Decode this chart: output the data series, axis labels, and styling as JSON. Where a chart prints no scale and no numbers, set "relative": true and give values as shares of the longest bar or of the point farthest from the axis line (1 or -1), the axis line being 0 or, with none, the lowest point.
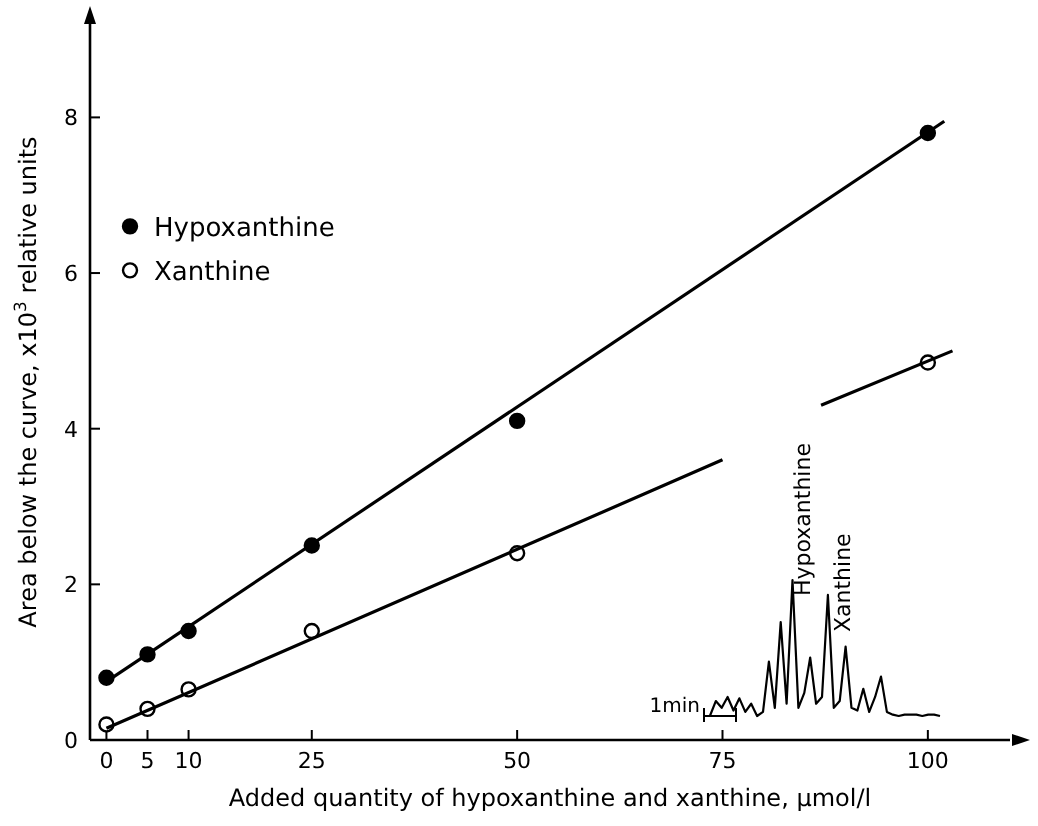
{
  "chart_data": [
    {
      "type": "scatter",
      "xlabel": "Added quantity of hypoxanthine and xanthine, μmol/l",
      "ylabel": "Area below the curve, x10$^{3}$ relative units",
      "xlim": [
        -2,
        110
      ],
      "ylim": [
        0,
        9.2
      ],
      "xticks": [
        0,
        5,
        10,
        25,
        50,
        75,
        100
      ],
      "yticks": [
        0,
        2,
        4,
        6,
        8
      ],
      "legend": "top left",
      "marker": "circle",
      "grid": false,
      "series": [
        {
          "name": "Hypoxanthine",
          "color": "#000000",
          "x": [
            0,
            5,
            10,
            25,
            50,
            100
          ],
          "values": [
            0.8,
            1.1,
            1.4,
            2.5,
            4.1,
            7.8
          ]
        },
        {
          "name": "Xanthine",
          "color": "#ffffff",
          "x": [
            0,
            5,
            10,
            25,
            50,
            100
          ],
          "values": [
            0.2,
            0.4,
            0.65,
            1.4,
            2.4,
            4.85
          ]
        },
        {
          "type": "line",
          "color": "#000000",
          "marker": "none",
          "x": [
            0,
            102
          ],
          "values": [
            0.75,
            7.95
          ]
        },
        {
          "type": "line",
          "color": "#000000",
          "marker": "none",
          "x": [
            0,
            75,
            80,
            87,
            103
          ],
          "values": [
            0.15,
            3.6,
            null,
            4.3,
            5.0
          ]
        }
      ]
    },
    {
      "type": "line",
      "relative": true,
      "categories": [
        null,
        null,
        null,
        null,
        null,
        null,
        null,
        null,
        null,
        null,
        null,
        null,
        null,
        null,
        null,
        null,
        null,
        null,
        null,
        null,
        null,
        null,
        null,
        null,
        null,
        null,
        null,
        null,
        null,
        null,
        null,
        null,
        null,
        null,
        null,
        null,
        null,
        null,
        null,
        null,
        null
      ],
      "series": [
        {
          "color": "#000000",
          "values": [
            0,
            0,
            0.11,
            0.06,
            0.14,
            0.04,
            0.13,
            0.03,
            0.09,
            0,
            0.03,
            0.4,
            0.06,
            0.69,
            0.09,
            1,
            0.06,
            0.17,
            0.43,
            0.09,
            0.14,
            0.89,
            0.06,
            0.11,
            0.51,
            0.06,
            0.04,
            0.2,
            0.03,
            0.14,
            0.29,
            0.03,
            0.01,
            0,
            0.01,
            0.01,
            0.01,
            0,
            0.01,
            0.01,
            0
          ]
        }
      ],
      "annotations": [
        "Hypoxanthine",
        "Xanthine",
        "1min"
      ]
    }
  ]
}
